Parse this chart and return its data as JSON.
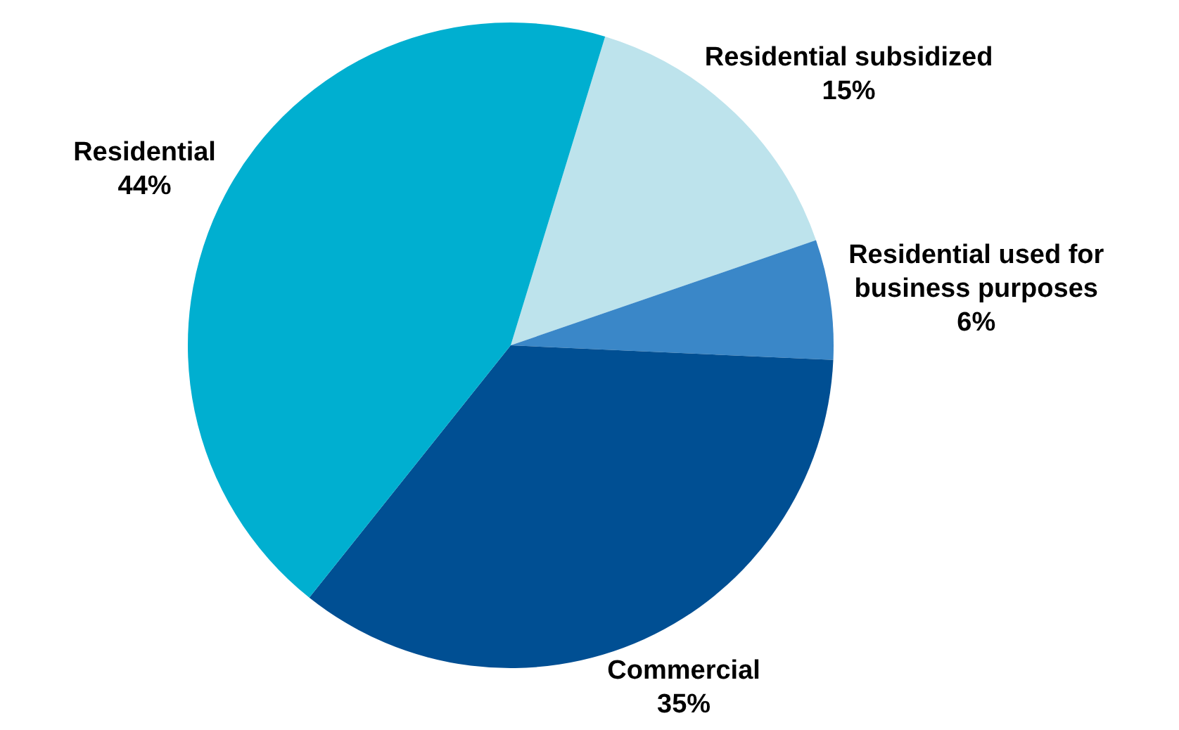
{
  "chart_data": {
    "type": "pie",
    "categories": [
      "Residential subsidized",
      "Residential used for business purposes",
      "Commercial",
      "Residential"
    ],
    "values": [
      15,
      6,
      35,
      44
    ],
    "colors": [
      "#bde3ec",
      "#3a87c8",
      "#004f93",
      "#00afd0"
    ],
    "value_labels": [
      "15%",
      "6%",
      "35%",
      "44%"
    ],
    "legend": false
  }
}
